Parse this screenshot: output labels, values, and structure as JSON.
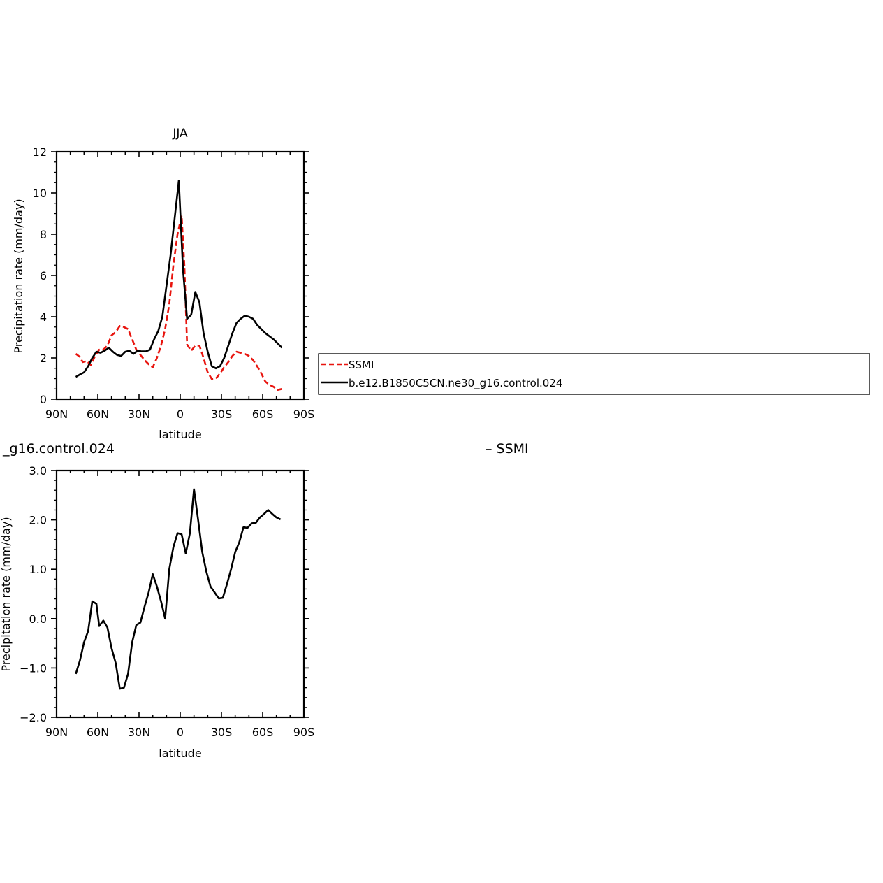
{
  "chart_data": [
    {
      "type": "line",
      "title": "JJA",
      "xlabel": "latitude",
      "ylabel": "Precipitation rate (mm/day)",
      "xlim": [
        90,
        -90
      ],
      "ylim": [
        0,
        12
      ],
      "x_ticks": [
        90,
        60,
        30,
        0,
        -30,
        -60,
        -90
      ],
      "x_tick_labels": [
        "90N",
        "60N",
        "30N",
        "0",
        "30S",
        "60S",
        "90S"
      ],
      "y_ticks": [
        0,
        2,
        4,
        6,
        8,
        10,
        12
      ],
      "y_tick_labels": [
        "0",
        "2",
        "4",
        "6",
        "8",
        "10",
        "12"
      ],
      "legend": {
        "placement": "right",
        "entries": [
          "SSMI",
          "b.e12.B1850C5CN.ne30_g16.control.024"
        ]
      },
      "series": [
        {
          "name": "SSMI",
          "color": "#e8140e",
          "dash": true,
          "points": [
            [
              76,
              2.2
            ],
            [
              73,
              2.05
            ],
            [
              71,
              1.8
            ],
            [
              68,
              1.85
            ],
            [
              65,
              1.65
            ],
            [
              62,
              2.1
            ],
            [
              59,
              2.4
            ],
            [
              56,
              2.4
            ],
            [
              53,
              2.6
            ],
            [
              50,
              3.1
            ],
            [
              47,
              3.25
            ],
            [
              44,
              3.55
            ],
            [
              41,
              3.5
            ],
            [
              38,
              3.4
            ],
            [
              35,
              2.9
            ],
            [
              32,
              2.4
            ],
            [
              29,
              2.15
            ],
            [
              26,
              1.9
            ],
            [
              23,
              1.7
            ],
            [
              20,
              1.55
            ],
            [
              17,
              2.0
            ],
            [
              14,
              2.6
            ],
            [
              11,
              3.4
            ],
            [
              8,
              4.6
            ],
            [
              5,
              6.5
            ],
            [
              2,
              8.0
            ],
            [
              -1,
              8.9
            ],
            [
              -3,
              6.5
            ],
            [
              -5,
              2.65
            ],
            [
              -8,
              2.35
            ],
            [
              -11,
              2.6
            ],
            [
              -14,
              2.6
            ],
            [
              -17,
              2.0
            ],
            [
              -20,
              1.3
            ],
            [
              -23,
              0.98
            ],
            [
              -26,
              1.0
            ],
            [
              -29,
              1.25
            ],
            [
              -32,
              1.55
            ],
            [
              -35,
              1.8
            ],
            [
              -38,
              2.1
            ],
            [
              -41,
              2.3
            ],
            [
              -44,
              2.25
            ],
            [
              -47,
              2.2
            ],
            [
              -50,
              2.1
            ],
            [
              -53,
              1.9
            ],
            [
              -56,
              1.6
            ],
            [
              -59,
              1.25
            ],
            [
              -62,
              0.85
            ],
            [
              -65,
              0.7
            ],
            [
              -68,
              0.6
            ],
            [
              -71,
              0.45
            ],
            [
              -74,
              0.5
            ]
          ]
        },
        {
          "name": "b.e12.B1850C5CN.ne30_g16.control.024",
          "color": "#000000",
          "dash": false,
          "points": [
            [
              76,
              1.08
            ],
            [
              73,
              1.2
            ],
            [
              70,
              1.3
            ],
            [
              67,
              1.6
            ],
            [
              64,
              2.0
            ],
            [
              61,
              2.3
            ],
            [
              58,
              2.25
            ],
            [
              55,
              2.35
            ],
            [
              52,
              2.5
            ],
            [
              49,
              2.3
            ],
            [
              46,
              2.15
            ],
            [
              43,
              2.1
            ],
            [
              40,
              2.3
            ],
            [
              37,
              2.35
            ],
            [
              34,
              2.2
            ],
            [
              31,
              2.35
            ],
            [
              28,
              2.32
            ],
            [
              25,
              2.32
            ],
            [
              22,
              2.4
            ],
            [
              19,
              2.9
            ],
            [
              16,
              3.3
            ],
            [
              13,
              4.0
            ],
            [
              10,
              5.5
            ],
            [
              7,
              7.0
            ],
            [
              4,
              8.8
            ],
            [
              1,
              10.6
            ],
            [
              -2,
              6.3
            ],
            [
              -5,
              3.9
            ],
            [
              -8,
              4.1
            ],
            [
              -11,
              5.2
            ],
            [
              -14,
              4.7
            ],
            [
              -17,
              3.2
            ],
            [
              -20,
              2.3
            ],
            [
              -23,
              1.6
            ],
            [
              -26,
              1.5
            ],
            [
              -29,
              1.6
            ],
            [
              -32,
              2.0
            ],
            [
              -35,
              2.6
            ],
            [
              -38,
              3.2
            ],
            [
              -41,
              3.7
            ],
            [
              -44,
              3.9
            ],
            [
              -47,
              4.05
            ],
            [
              -50,
              4.0
            ],
            [
              -53,
              3.9
            ],
            [
              -56,
              3.6
            ],
            [
              -59,
              3.4
            ],
            [
              -62,
              3.2
            ],
            [
              -65,
              3.05
            ],
            [
              -68,
              2.9
            ],
            [
              -71,
              2.7
            ],
            [
              -74,
              2.5
            ]
          ]
        }
      ]
    },
    {
      "type": "line",
      "title_fragment_left": "_g16.control.024",
      "title_fragment_right": "– SSMI",
      "xlabel": "latitude",
      "ylabel": "Precipitation rate (mm/day)",
      "xlim": [
        90,
        -90
      ],
      "ylim": [
        -2,
        3
      ],
      "x_ticks": [
        90,
        60,
        30,
        0,
        -30,
        -60,
        -90
      ],
      "x_tick_labels": [
        "90N",
        "60N",
        "30N",
        "0",
        "30S",
        "60S",
        "90S"
      ],
      "y_ticks": [
        -2,
        -1,
        0,
        1,
        2,
        3
      ],
      "y_tick_labels": [
        "−2.0",
        "−1.0",
        "0.0",
        "1.0",
        "2.0",
        "3.0"
      ],
      "series": [
        {
          "name": "",
          "color": "#000000",
          "dash": false,
          "points": [
            [
              76,
              -1.12
            ],
            [
              73,
              -0.85
            ],
            [
              70,
              -0.48
            ],
            [
              67,
              -0.25
            ],
            [
              64,
              0.35
            ],
            [
              61,
              0.3
            ],
            [
              59,
              -0.15
            ],
            [
              56,
              -0.04
            ],
            [
              53,
              -0.18
            ],
            [
              50,
              -0.6
            ],
            [
              47,
              -0.9
            ],
            [
              44,
              -1.42
            ],
            [
              41,
              -1.4
            ],
            [
              38,
              -1.12
            ],
            [
              35,
              -0.48
            ],
            [
              32,
              -0.13
            ],
            [
              29,
              -0.08
            ],
            [
              26,
              0.24
            ],
            [
              23,
              0.53
            ],
            [
              20,
              0.9
            ],
            [
              17,
              0.65
            ],
            [
              14,
              0.35
            ],
            [
              11,
              0.0
            ],
            [
              8,
              1.0
            ],
            [
              5,
              1.45
            ],
            [
              2,
              1.73
            ],
            [
              -1,
              1.71
            ],
            [
              -4,
              1.32
            ],
            [
              -7,
              1.73
            ],
            [
              -10,
              2.62
            ],
            [
              -13,
              2.0
            ],
            [
              -16,
              1.35
            ],
            [
              -19,
              0.95
            ],
            [
              -22,
              0.65
            ],
            [
              -25,
              0.53
            ],
            [
              -28,
              0.41
            ],
            [
              -31,
              0.42
            ],
            [
              -34,
              0.7
            ],
            [
              -37,
              1.0
            ],
            [
              -40,
              1.35
            ],
            [
              -43,
              1.55
            ],
            [
              -46,
              1.85
            ],
            [
              -49,
              1.84
            ],
            [
              -52,
              1.93
            ],
            [
              -55,
              1.94
            ],
            [
              -58,
              2.05
            ],
            [
              -61,
              2.12
            ],
            [
              -64,
              2.2
            ],
            [
              -67,
              2.12
            ],
            [
              -70,
              2.05
            ],
            [
              -73,
              2.01
            ]
          ]
        }
      ]
    }
  ]
}
